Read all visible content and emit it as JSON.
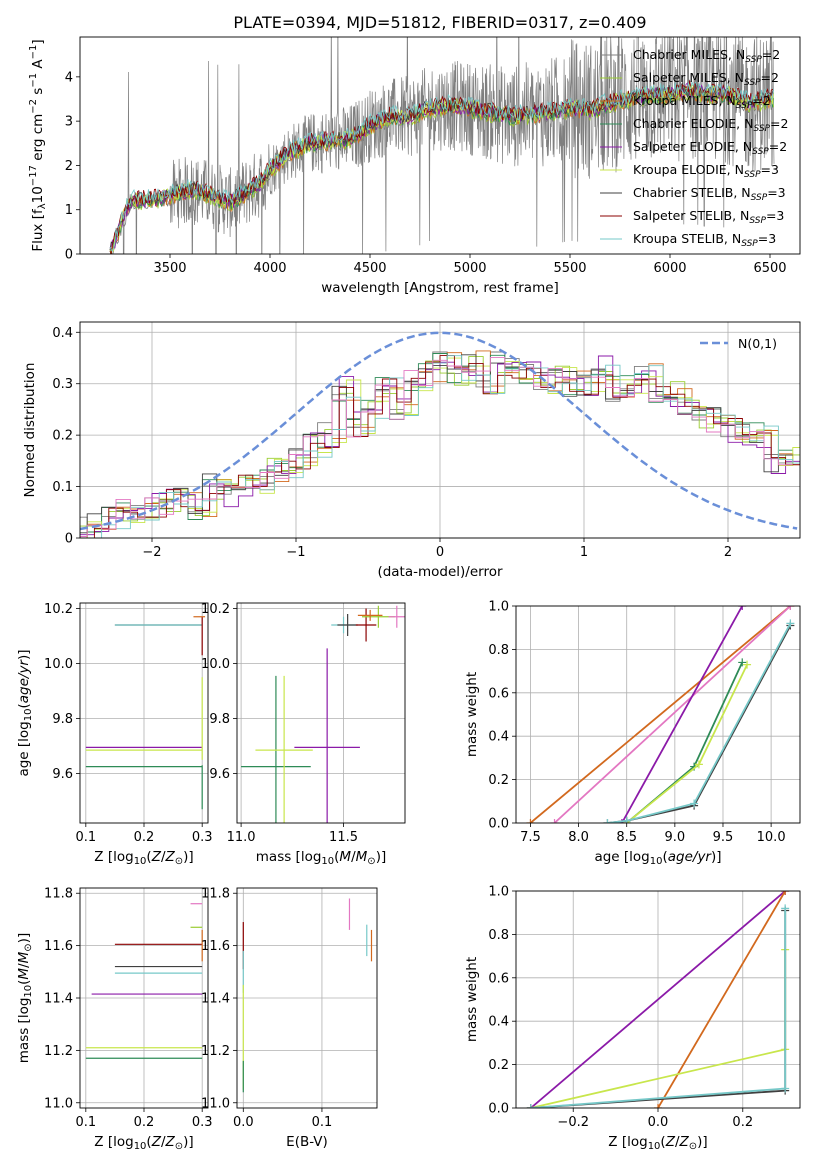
{
  "figure": {
    "title": "PLATE=0394, MJD=51812, FIBERID=0317, z=0.409"
  },
  "colors": {
    "Chabrier MILES": "#7f7f7f",
    "Salpeter MILES": "#9acd32",
    "Kroupa MILES": "#d2691e",
    "Chabrier ELODIE": "#2e8b57",
    "Salpeter ELODIE": "#8b1aa8",
    "Kroupa ELODIE": "#c8e64c",
    "Chabrier STELIB": "#404040",
    "Salpeter STELIB": "#8b0000",
    "Kroupa STELIB": "#76c8c8",
    "pink": "#e377c2",
    "gauss": "#6a8fd8"
  },
  "chart_data": [
    {
      "id": "spectrum",
      "type": "line",
      "title": "PLATE=0394, MJD=51812, FIBERID=0317, z=0.409",
      "xlabel": "wavelength [Angstrom, rest frame]",
      "ylabel": "Flux [f_λ 10^-17 erg cm^-2 s^-1 A^-1]",
      "xlim": [
        3050,
        6650
      ],
      "ylim": [
        0,
        4.9
      ],
      "xticks": [
        3500,
        4000,
        4500,
        5000,
        5500,
        6000,
        6500
      ],
      "yticks": [
        0,
        1,
        2,
        3,
        4
      ],
      "grid": false,
      "legend_position": "right",
      "legend": [
        {
          "base": "Chabrier MILES, N",
          "sub": "SSP",
          "tail": "=2"
        },
        {
          "base": "Salpeter MILES, N",
          "sub": "SSP",
          "tail": "=2"
        },
        {
          "base": "Kroupa MILES, N",
          "sub": "SSP",
          "tail": "=2"
        },
        {
          "base": "Chabrier ELODIE, N",
          "sub": "SSP",
          "tail": "=2"
        },
        {
          "base": "Salpeter ELODIE, N",
          "sub": "SSP",
          "tail": "=2"
        },
        {
          "base": "Kroupa ELODIE, N",
          "sub": "SSP",
          "tail": "=3"
        },
        {
          "base": "Chabrier STELIB, N",
          "sub": "SSP",
          "tail": "=3"
        },
        {
          "base": "Salpeter STELIB, N",
          "sub": "SSP",
          "tail": "=3"
        },
        {
          "base": "Kroupa STELIB, N",
          "sub": "SSP",
          "tail": "=3"
        }
      ],
      "model_knots_x": [
        3200,
        3300,
        3450,
        3600,
        3700,
        3800,
        3900,
        3950,
        4000,
        4100,
        4200,
        4300,
        4400,
        4500,
        4600,
        4700,
        4800,
        4900,
        5000,
        5100,
        5200,
        5300,
        5400,
        5500,
        5600,
        5700,
        5800,
        5900,
        6000,
        6100,
        6200,
        6300,
        6400,
        6500
      ],
      "model_knots_y": [
        0.0,
        1.2,
        1.25,
        1.45,
        1.35,
        1.15,
        1.45,
        1.6,
        1.9,
        2.3,
        2.5,
        2.55,
        2.6,
        2.9,
        3.1,
        3.1,
        3.3,
        3.35,
        3.3,
        3.2,
        3.1,
        3.15,
        3.2,
        3.3,
        3.25,
        3.4,
        3.5,
        3.6,
        3.6,
        3.7,
        3.6,
        3.6,
        3.4,
        3.5
      ]
    },
    {
      "id": "residuals",
      "type": "line",
      "xlabel": "(data-model)/error",
      "ylabel": "Normed distribution",
      "xlim": [
        -2.5,
        2.5
      ],
      "ylim": [
        0,
        0.42
      ],
      "xticks": [
        -2,
        -1,
        0,
        1,
        2
      ],
      "yticks": [
        0.0,
        0.1,
        0.2,
        0.3,
        0.4
      ],
      "grid": true,
      "legend_position": "top-right",
      "legend_label": "N(0,1)",
      "bin_edges_start": -2.5,
      "bin_width": 0.1,
      "base_distribution": [
        0.02,
        0.03,
        0.04,
        0.055,
        0.06,
        0.065,
        0.07,
        0.075,
        0.06,
        0.1,
        0.085,
        0.1,
        0.11,
        0.13,
        0.14,
        0.15,
        0.18,
        0.2,
        0.29,
        0.22,
        0.25,
        0.29,
        0.25,
        0.31,
        0.32,
        0.34,
        0.31,
        0.34,
        0.3,
        0.34,
        0.33,
        0.32,
        0.3,
        0.31,
        0.3,
        0.3,
        0.33,
        0.29,
        0.3,
        0.32,
        0.27,
        0.28,
        0.26,
        0.23,
        0.23,
        0.21,
        0.2,
        0.2,
        0.15,
        0.16,
        0.17,
        0.15,
        0.16,
        0.12,
        0.11,
        0.11,
        0.1,
        0.1,
        0.11,
        0.09,
        0.1,
        0.1,
        0.09,
        0.08,
        0.07,
        0.07,
        0.06,
        0.06,
        0.06,
        0.05,
        0.05,
        0.04,
        0.05,
        0.04,
        0.03,
        0.03,
        0.02,
        0.02,
        0.02,
        0.03,
        0.02,
        0.02,
        0.01,
        0.01,
        0.01,
        0.02,
        0.02,
        0.01,
        0.01,
        0.01,
        0.01,
        0.01,
        0.01,
        0.01,
        0.01,
        0.01,
        0.01,
        0.01,
        0.01,
        0.01
      ]
    },
    {
      "id": "z-age",
      "type": "scatter",
      "xlabel": "Z [log10(Z/Z⊙)]",
      "ylabel": "age [log10(age/yr)]",
      "xlim": [
        0.09,
        0.31
      ],
      "ylim": [
        9.42,
        10.22
      ],
      "xticks": [
        0.1,
        0.2,
        0.3
      ],
      "yticks": [
        9.6,
        9.8,
        10.0,
        10.2
      ],
      "grid": true,
      "errorbars": [
        {
          "series": "Chabrier ELODIE",
          "x": 0.2,
          "y": 9.625,
          "xerr": 0.1,
          "yerr": 0
        },
        {
          "series": "Salpeter ELODIE",
          "x": 0.2,
          "y": 9.695,
          "xerr": 0.1,
          "yerr": 0
        },
        {
          "series": "Kroupa ELODIE",
          "x": 0.2,
          "y": 9.685,
          "xerr": 0.1,
          "yerr": 0
        },
        {
          "series": "Chabrier STELIB",
          "x": 0.225,
          "y": 10.14,
          "xerr": 0.075,
          "yerr": 0
        },
        {
          "series": "Kroupa STELIB",
          "x": 0.225,
          "y": 10.14,
          "xerr": 0.075,
          "yerr": 0
        },
        {
          "series": "Kroupa ELODIE",
          "x": 0.3,
          "y": 9.8,
          "xerr": 0,
          "yerr": 0.15
        },
        {
          "series": "Chabrier ELODIE",
          "x": 0.3,
          "y": 9.55,
          "xerr": 0,
          "yerr": 0.08
        },
        {
          "series": "Salpeter STELIB",
          "x": 0.3,
          "y": 10.1,
          "xerr": 0,
          "yerr": 0.07
        },
        {
          "series": "Kroupa MILES",
          "x": 0.295,
          "y": 10.17,
          "xerr": 0.01,
          "yerr": 0
        }
      ]
    },
    {
      "id": "mass-age",
      "type": "scatter",
      "xlabel": "mass [log10(M/M⊙)]",
      "ylabel": "",
      "xlim": [
        10.98,
        11.8
      ],
      "ylim": [
        9.42,
        10.22
      ],
      "xticks": [
        11.0,
        11.5
      ],
      "yticks": [
        9.6,
        9.8,
        10.0,
        10.2
      ],
      "grid": true,
      "errorbars": [
        {
          "series": "Chabrier ELODIE",
          "x": 11.17,
          "y": 9.625,
          "xerr": 0.17,
          "yerr": 0.33
        },
        {
          "series": "Kroupa ELODIE",
          "x": 11.21,
          "y": 9.685,
          "xerr": 0.14,
          "yerr": 0.27
        },
        {
          "series": "Salpeter ELODIE",
          "x": 11.42,
          "y": 9.695,
          "xerr": 0.16,
          "yerr": 0.36
        },
        {
          "series": "Kroupa STELIB",
          "x": 11.5,
          "y": 10.14,
          "xerr": 0.06,
          "yerr": 0.03
        },
        {
          "series": "Chabrier STELIB",
          "x": 11.52,
          "y": 10.14,
          "xerr": 0.05,
          "yerr": 0.04
        },
        {
          "series": "Salpeter STELIB",
          "x": 11.61,
          "y": 10.14,
          "xerr": 0.05,
          "yerr": 0.06
        },
        {
          "series": "Salpeter MILES",
          "x": 11.67,
          "y": 10.17,
          "xerr": 0.08,
          "yerr": 0.04
        },
        {
          "series": "pink",
          "x": 11.76,
          "y": 10.17,
          "xerr": 0.04,
          "yerr": 0.04
        },
        {
          "series": "Kroupa MILES",
          "x": 11.63,
          "y": 10.175,
          "xerr": 0.06,
          "yerr": 0.02
        }
      ]
    },
    {
      "id": "age-weight",
      "type": "line",
      "xlabel": "age [log10(age/yr)]",
      "ylabel": "mass weight",
      "xlim": [
        7.35,
        10.3
      ],
      "ylim": [
        0,
        1.0
      ],
      "xticks": [
        7.5,
        8.0,
        8.5,
        9.0,
        9.5,
        10.0
      ],
      "yticks": [
        0.0,
        0.2,
        0.4,
        0.6,
        0.8,
        1.0
      ],
      "grid": true,
      "series": [
        {
          "name": "Kroupa MILES",
          "x": [
            7.5,
            10.2
          ],
          "y": [
            0.0,
            1.0
          ]
        },
        {
          "name": "pink",
          "x": [
            7.75,
            10.2
          ],
          "y": [
            0.0,
            1.0
          ]
        },
        {
          "name": "Salpeter ELODIE",
          "x": [
            8.45,
            9.7
          ],
          "y": [
            0.0,
            1.0
          ]
        },
        {
          "name": "Chabrier ELODIE",
          "x": [
            8.5,
            9.2,
            9.7
          ],
          "y": [
            0.0,
            0.26,
            0.74
          ]
        },
        {
          "name": "Kroupa ELODIE",
          "x": [
            8.5,
            9.25,
            9.75
          ],
          "y": [
            0.0,
            0.27,
            0.73
          ]
        },
        {
          "name": "Chabrier STELIB",
          "x": [
            8.3,
            8.5,
            9.2,
            10.2
          ],
          "y": [
            0.0,
            0.01,
            0.08,
            0.91
          ]
        },
        {
          "name": "Kroupa STELIB",
          "x": [
            8.3,
            8.5,
            9.2,
            10.2
          ],
          "y": [
            0.0,
            0.01,
            0.09,
            0.92
          ]
        }
      ]
    },
    {
      "id": "z-mass",
      "type": "scatter",
      "xlabel": "Z [log10(Z/Z⊙)]",
      "ylabel": "mass [log10(M/M⊙)]",
      "xlim": [
        0.09,
        0.31
      ],
      "ylim": [
        10.98,
        11.82
      ],
      "xticks": [
        0.1,
        0.2,
        0.3
      ],
      "yticks": [
        11.0,
        11.2,
        11.4,
        11.6,
        11.8
      ],
      "grid": true,
      "errorbars": [
        {
          "series": "Chabrier ELODIE",
          "x": 0.2,
          "y": 11.17,
          "xerr": 0.1,
          "yerr": 0
        },
        {
          "series": "Kroupa ELODIE",
          "x": 0.2,
          "y": 11.21,
          "xerr": 0.1,
          "yerr": 0
        },
        {
          "series": "Salpeter ELODIE",
          "x": 0.205,
          "y": 11.415,
          "xerr": 0.095,
          "yerr": 0
        },
        {
          "series": "Kroupa STELIB",
          "x": 0.225,
          "y": 11.495,
          "xerr": 0.075,
          "yerr": 0
        },
        {
          "series": "Chabrier STELIB",
          "x": 0.225,
          "y": 11.52,
          "xerr": 0.075,
          "yerr": 0
        },
        {
          "series": "Salpeter STELIB",
          "x": 0.225,
          "y": 11.605,
          "xerr": 0.075,
          "yerr": 0
        },
        {
          "series": "Salpeter MILES",
          "x": 0.29,
          "y": 11.67,
          "xerr": 0.01,
          "yerr": 0
        },
        {
          "series": "pink",
          "x": 0.29,
          "y": 11.76,
          "xerr": 0.01,
          "yerr": 0
        },
        {
          "series": "Kroupa MILES",
          "x": 0.3,
          "y": 11.6,
          "xerr": 0,
          "yerr": 0.06
        }
      ]
    },
    {
      "id": "ebv-mass",
      "type": "scatter",
      "xlabel": "E(B-V)",
      "ylabel": "",
      "xlim": [
        -0.008,
        0.17
      ],
      "ylim": [
        10.98,
        11.82
      ],
      "xticks": [
        0.0,
        0.1
      ],
      "yticks": [
        11.0,
        11.2,
        11.4,
        11.6,
        11.8
      ],
      "grid": true,
      "errorbars": [
        {
          "series": "Salpeter STELIB",
          "x": 0.0,
          "y": 11.6,
          "xerr": 0,
          "yerr": 0.09
        },
        {
          "series": "Kroupa STELIB",
          "x": 0.0,
          "y": 11.5,
          "xerr": 0,
          "yerr": 0.08
        },
        {
          "series": "Kroupa ELODIE",
          "x": 0.0,
          "y": 11.25,
          "xerr": 0,
          "yerr": 0.2
        },
        {
          "series": "Chabrier ELODIE",
          "x": 0.0,
          "y": 11.1,
          "xerr": 0,
          "yerr": 0.06
        },
        {
          "series": "pink",
          "x": 0.135,
          "y": 11.72,
          "xerr": 0,
          "yerr": 0.06
        },
        {
          "series": "Kroupa STELIB",
          "x": 0.157,
          "y": 11.62,
          "xerr": 0,
          "yerr": 0.06
        },
        {
          "series": "Kroupa MILES",
          "x": 0.163,
          "y": 11.6,
          "xerr": 0,
          "yerr": 0.06
        }
      ]
    },
    {
      "id": "z-weight",
      "type": "line",
      "xlabel": "Z [log10(Z/Z⊙)]",
      "ylabel": "mass weight",
      "xlim": [
        -0.335,
        0.335
      ],
      "ylim": [
        0,
        1.0
      ],
      "xticks": [
        -0.2,
        0.0,
        0.2
      ],
      "yticks": [
        0.0,
        0.2,
        0.4,
        0.6,
        0.8,
        1.0
      ],
      "grid": true,
      "series": [
        {
          "name": "Salpeter ELODIE",
          "x": [
            -0.3,
            0.3
          ],
          "y": [
            0.0,
            1.0
          ]
        },
        {
          "name": "Kroupa MILES",
          "x": [
            0.0,
            0.3
          ],
          "y": [
            0.0,
            1.0
          ]
        },
        {
          "name": "Kroupa ELODIE",
          "x": [
            -0.3,
            0.3,
            0.3
          ],
          "y": [
            0.0,
            0.27,
            0.73
          ]
        },
        {
          "name": "Chabrier STELIB",
          "x": [
            -0.3,
            0.3,
            0.3
          ],
          "y": [
            0.0,
            0.08,
            0.91
          ]
        },
        {
          "name": "Kroupa STELIB",
          "x": [
            -0.3,
            0.3,
            0.3
          ],
          "y": [
            0.0,
            0.09,
            0.92
          ]
        }
      ]
    }
  ]
}
